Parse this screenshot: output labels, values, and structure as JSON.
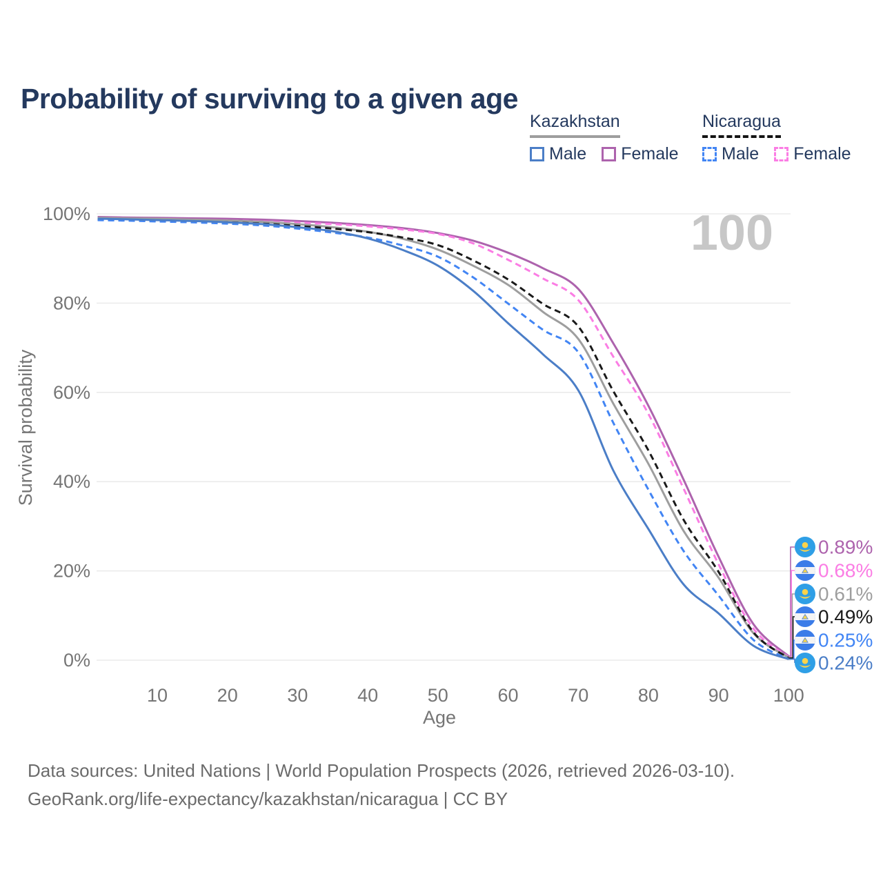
{
  "title": "Probability of surviving to a given age",
  "legend": {
    "kazakhstan": {
      "label": "Kazakhstan",
      "male": "Male",
      "female": "Female"
    },
    "nicaragua": {
      "label": "Nicaragua",
      "male": "Male",
      "female": "Female"
    }
  },
  "watermark": "100",
  "footer": {
    "line1": "Data sources: United Nations | World Population Prospects (2026, retrieved 2026-03-10).",
    "line2": "GeoRank.org/life-expectancy/kazakhstan/nicaragua | CC BY"
  },
  "chart_data": {
    "type": "line",
    "title": "Probability of surviving to a given age",
    "xlabel": "Age",
    "ylabel": "Survival probability",
    "xlim": [
      0,
      100
    ],
    "ylim": [
      0,
      100
    ],
    "grid": "horizontal",
    "legend_position": "top-right",
    "x_ticks": [
      10,
      20,
      30,
      40,
      50,
      60,
      70,
      80,
      90,
      100
    ],
    "y_ticks": [
      0,
      20,
      40,
      60,
      80,
      100
    ],
    "y_tick_suffix": "%",
    "ages": [
      1.5,
      5,
      10,
      15,
      20,
      25,
      30,
      35,
      40,
      45,
      50,
      55,
      60,
      65,
      70,
      75,
      80,
      85,
      90,
      95,
      100
    ],
    "series": [
      {
        "country": "Kazakhstan",
        "sex": "Female",
        "style": "solid",
        "color": "#ad63ad",
        "flag": "kz",
        "end_label": "0.89%",
        "values": [
          99.3,
          99.2,
          99.1,
          99.0,
          98.9,
          98.7,
          98.4,
          98.0,
          97.5,
          96.8,
          95.7,
          94.0,
          91.3,
          87.8,
          83.2,
          71.0,
          57.0,
          40.5,
          23.2,
          8.0,
          0.89
        ]
      },
      {
        "country": "Nicaragua",
        "sex": "Female",
        "style": "dashed",
        "color": "#fb7de4",
        "flag": "ni",
        "end_label": "0.68%",
        "values": [
          98.9,
          98.8,
          98.7,
          98.6,
          98.5,
          98.3,
          98.0,
          97.7,
          97.2,
          96.5,
          95.5,
          93.4,
          89.7,
          85.5,
          80.7,
          68.0,
          55.2,
          38.5,
          21.5,
          7.0,
          0.68
        ]
      },
      {
        "country": "Kazakhstan",
        "sex": "Both sexes",
        "style": "solid",
        "color": "#9e9e9e",
        "flag": "kz",
        "end_label": "0.61%",
        "values": [
          99.1,
          99.0,
          98.9,
          98.7,
          98.5,
          98.2,
          97.7,
          97.0,
          96.0,
          94.4,
          92.0,
          88.4,
          84.1,
          78.0,
          72.0,
          57.5,
          44.0,
          29.0,
          18.5,
          6.0,
          0.61
        ]
      },
      {
        "country": "Nicaragua",
        "sex": "Both sexes",
        "style": "dashed",
        "color": "#1a1a1a",
        "flag": "ni",
        "end_label": "0.49%",
        "values": [
          98.7,
          98.6,
          98.5,
          98.3,
          98.1,
          97.8,
          97.3,
          96.7,
          95.9,
          94.7,
          93.0,
          89.6,
          85.3,
          79.8,
          74.8,
          60.3,
          47.0,
          31.5,
          19.8,
          6.2,
          0.49
        ]
      },
      {
        "country": "Nicaragua",
        "sex": "Male",
        "style": "dashed",
        "color": "#4285f4",
        "flag": "ni",
        "end_label": "0.25%",
        "values": [
          98.6,
          98.5,
          98.3,
          98.1,
          97.8,
          97.4,
          96.7,
          95.8,
          94.7,
          92.9,
          90.4,
          85.8,
          79.9,
          74.0,
          69.0,
          53.2,
          38.2,
          24.5,
          14.5,
          4.5,
          0.25
        ]
      },
      {
        "country": "Kazakhstan",
        "sex": "Male",
        "style": "solid",
        "color": "#4b7ec7",
        "flag": "kz",
        "end_label": "0.24%",
        "values": [
          98.9,
          98.8,
          98.6,
          98.4,
          98.1,
          97.7,
          97.0,
          96.1,
          94.5,
          91.9,
          88.4,
          82.8,
          75.5,
          68.5,
          60.5,
          42.5,
          29.4,
          17.0,
          10.5,
          3.2,
          0.24
        ]
      }
    ]
  }
}
